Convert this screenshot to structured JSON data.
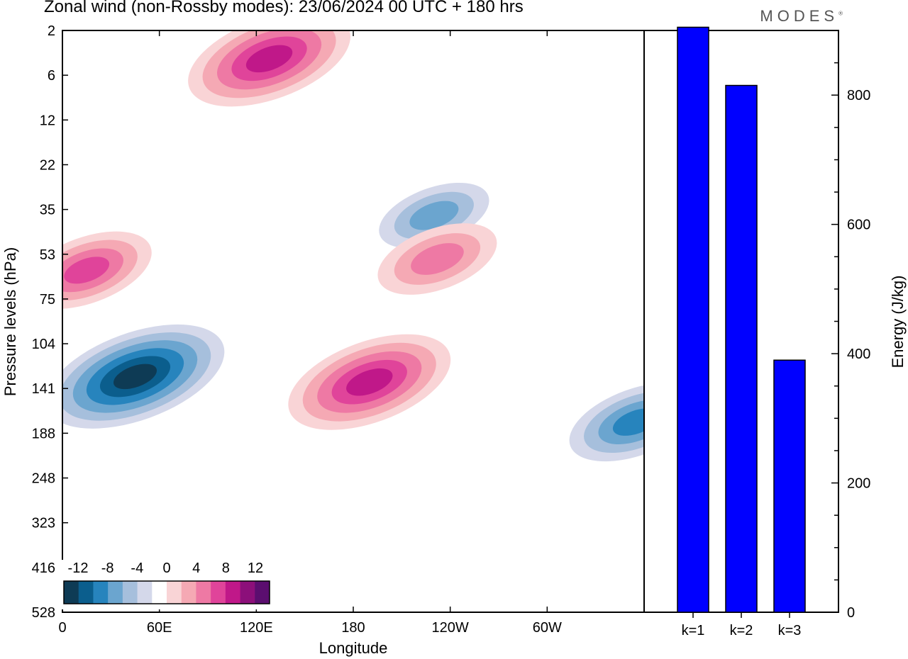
{
  "title": "Zonal wind (non-Rossby modes):  23/06/2024  00 UTC  + 180 hrs",
  "brand": "MODES",
  "brand_mark": "®",
  "colors": {
    "bars": "#0000ff",
    "palette": [
      "#0e3b55",
      "#0b5e8d",
      "#2784bd",
      "#6ba5cf",
      "#a6bfdc",
      "#d4d8ea",
      "#ffffff",
      "#ffffff",
      "#f9d4d6",
      "#f5a9b4",
      "#ee79a4",
      "#e0449a",
      "#c01889",
      "#8c0f7a",
      "#5b0e6f"
    ]
  },
  "chart_data": [
    {
      "type": "heatmap",
      "xlabel": "Longitude",
      "ylabel": "Pressure levels (hPa)",
      "x_ticks": [
        "0",
        "60E",
        "120E",
        "180",
        "120W",
        "60W"
      ],
      "y_ticks": [
        "2",
        "6",
        "12",
        "22",
        "35",
        "53",
        "75",
        "104",
        "141",
        "188",
        "248",
        "323",
        "416",
        "528"
      ],
      "colorbar": {
        "labels": [
          "-12",
          "-8",
          "-4",
          "0",
          "4",
          "8",
          "12"
        ],
        "levels": [
          -14,
          -12,
          -10,
          -8,
          -6,
          -4,
          -2,
          0,
          2,
          4,
          6,
          8,
          10,
          12,
          14
        ]
      },
      "features": [
        {
          "sign": "negative",
          "lon": 45,
          "pressure": 130,
          "peak": -14
        },
        {
          "sign": "negative",
          "lon": 230,
          "pressure": 37,
          "peak": -8
        },
        {
          "sign": "negative",
          "lon": 355,
          "pressure": 175,
          "peak": -10
        },
        {
          "sign": "positive",
          "lon": 190,
          "pressure": 135,
          "peak": 10
        },
        {
          "sign": "positive",
          "lon": 232,
          "pressure": 55,
          "peak": 6
        },
        {
          "sign": "positive",
          "lon": 128,
          "pressure": 4,
          "peak": 10
        },
        {
          "sign": "positive",
          "lon": 15,
          "pressure": 60,
          "peak": 7
        }
      ]
    },
    {
      "type": "bar",
      "categories": [
        "k=1",
        "k=2",
        "k=3"
      ],
      "values": [
        905,
        815,
        390
      ],
      "ylabel": "Energy (J/kg)",
      "y_ticks": [
        "0",
        "200",
        "400",
        "600",
        "800"
      ],
      "ylim": [
        0,
        900
      ]
    }
  ]
}
